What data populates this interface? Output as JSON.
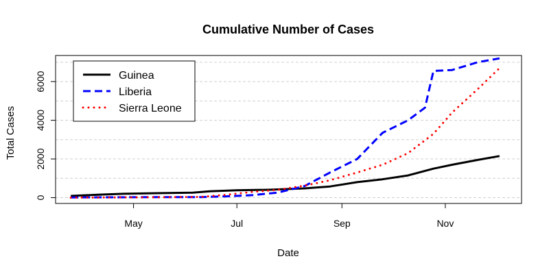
{
  "chart_data": {
    "type": "line",
    "title": "Cumulative Number of Cases",
    "xlabel": "Date",
    "ylabel": "Total Cases",
    "x_ticks": [
      {
        "label": "May",
        "date": "2014-05-01"
      },
      {
        "label": "Jul",
        "date": "2014-07-01"
      },
      {
        "label": "Sep",
        "date": "2014-09-01"
      },
      {
        "label": "Nov",
        "date": "2014-11-01"
      }
    ],
    "y_ticks": [
      0,
      2000,
      4000,
      6000
    ],
    "y_grid": [
      0,
      1000,
      2000,
      3000,
      4000,
      5000,
      6000,
      7000
    ],
    "xlim": [
      "2014-03-16",
      "2014-12-16"
    ],
    "ylim": [
      -300,
      7350
    ],
    "grid": "horizontal-dashed",
    "legend_position": "top-left",
    "series": [
      {
        "name": "Guinea",
        "color": "#000000",
        "style": "solid",
        "points": [
          [
            "2014-03-25",
            90
          ],
          [
            "2014-04-10",
            150
          ],
          [
            "2014-04-25",
            200
          ],
          [
            "2014-05-15",
            230
          ],
          [
            "2014-06-05",
            260
          ],
          [
            "2014-06-15",
            330
          ],
          [
            "2014-07-01",
            380
          ],
          [
            "2014-07-20",
            410
          ],
          [
            "2014-08-10",
            480
          ],
          [
            "2014-08-25",
            580
          ],
          [
            "2014-09-10",
            800
          ],
          [
            "2014-09-25",
            950
          ],
          [
            "2014-10-10",
            1150
          ],
          [
            "2014-10-25",
            1500
          ],
          [
            "2014-11-05",
            1700
          ],
          [
            "2014-11-20",
            1950
          ],
          [
            "2014-12-03",
            2150
          ]
        ]
      },
      {
        "name": "Liberia",
        "color": "#0000ff",
        "style": "dashed",
        "points": [
          [
            "2014-03-25",
            10
          ],
          [
            "2014-04-20",
            20
          ],
          [
            "2014-05-20",
            30
          ],
          [
            "2014-06-10",
            30
          ],
          [
            "2014-06-25",
            70
          ],
          [
            "2014-07-10",
            130
          ],
          [
            "2014-07-25",
            260
          ],
          [
            "2014-08-10",
            600
          ],
          [
            "2014-08-25",
            1300
          ],
          [
            "2014-09-10",
            2000
          ],
          [
            "2014-09-25",
            3350
          ],
          [
            "2014-10-10",
            4000
          ],
          [
            "2014-10-20",
            4650
          ],
          [
            "2014-10-25",
            6550
          ],
          [
            "2014-11-05",
            6600
          ],
          [
            "2014-11-20",
            7000
          ],
          [
            "2014-12-03",
            7200
          ]
        ]
      },
      {
        "name": "Sierra Leone",
        "color": "#ff0000",
        "style": "dotted",
        "points": [
          [
            "2014-03-25",
            0
          ],
          [
            "2014-04-20",
            10
          ],
          [
            "2014-05-15",
            20
          ],
          [
            "2014-06-10",
            40
          ],
          [
            "2014-06-25",
            150
          ],
          [
            "2014-07-10",
            300
          ],
          [
            "2014-07-25",
            400
          ],
          [
            "2014-08-10",
            620
          ],
          [
            "2014-08-25",
            900
          ],
          [
            "2014-09-10",
            1300
          ],
          [
            "2014-09-25",
            1700
          ],
          [
            "2014-10-10",
            2300
          ],
          [
            "2014-10-25",
            3300
          ],
          [
            "2014-11-05",
            4400
          ],
          [
            "2014-11-20",
            5600
          ],
          [
            "2014-12-03",
            6700
          ]
        ]
      }
    ]
  }
}
